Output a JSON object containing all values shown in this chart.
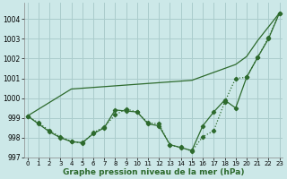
{
  "xlabel": "Graphe pression niveau de la mer (hPa)",
  "background_color": "#cce8e8",
  "grid_color": "#aacccc",
  "line_color": "#2d6a2d",
  "ylim": [
    997,
    1004.8
  ],
  "yticks": [
    997,
    998,
    999,
    1000,
    1001,
    1002,
    1003,
    1004
  ],
  "x_ticks": [
    0,
    1,
    2,
    3,
    4,
    5,
    6,
    7,
    8,
    9,
    10,
    11,
    12,
    13,
    14,
    15,
    16,
    17,
    18,
    19,
    20,
    21,
    22,
    23
  ],
  "series_straight": [
    999.1,
    999.44,
    999.78,
    1000.12,
    1000.46,
    1000.5,
    1000.54,
    1000.58,
    1000.62,
    1000.66,
    1000.7,
    1000.74,
    1000.78,
    1000.82,
    1000.86,
    1000.9,
    1001.1,
    1001.3,
    1001.5,
    1001.7,
    1002.1,
    1002.9,
    1003.6,
    1004.3
  ],
  "series_wavy": [
    999.1,
    998.7,
    998.3,
    998.0,
    997.8,
    997.75,
    998.2,
    998.5,
    999.4,
    999.35,
    999.3,
    998.7,
    998.6,
    997.65,
    997.5,
    997.35,
    998.6,
    999.3,
    999.9,
    999.5,
    1001.05,
    1002.05,
    1003.0,
    1004.3
  ],
  "series_dotted": [
    999.1,
    998.75,
    998.35,
    998.05,
    997.82,
    997.72,
    998.25,
    998.55,
    999.15,
    999.45,
    999.3,
    998.75,
    998.7,
    997.62,
    997.52,
    997.32,
    998.05,
    998.35,
    999.8,
    1001.0,
    1001.05,
    1002.05,
    1003.05,
    1004.3
  ]
}
